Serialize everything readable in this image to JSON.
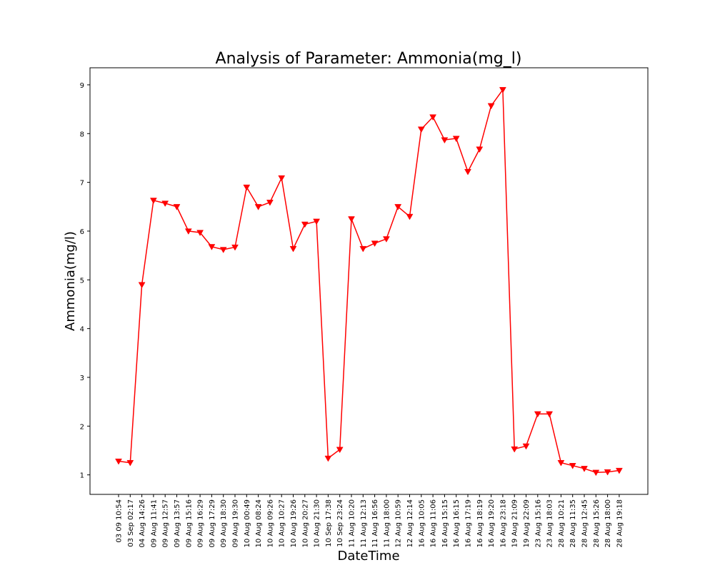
{
  "chart_data": {
    "type": "line",
    "title": "Analysis of Parameter: Ammonia(mg_l)",
    "xlabel": "DateTime",
    "ylabel": "Ammonia(mg/l)",
    "ylim": [
      0.6,
      9.35
    ],
    "yticks": [
      1,
      2,
      3,
      4,
      5,
      6,
      7,
      8,
      9
    ],
    "grid": false,
    "legend": "none",
    "color": "#ff0000",
    "marker": "triangle-down",
    "x": [
      "03 09 10:54",
      "03 Sep 02:17",
      "04 Aug 14:26",
      "09 Aug 11:41",
      "09 Aug 12:57",
      "09 Aug 13:57",
      "09 Aug 15:16",
      "09 Aug 16:29",
      "09 Aug 17:29",
      "09 Aug 18:30",
      "09 Aug 19:30",
      "10 Aug 00:49",
      "10 Aug 08:24",
      "10 Aug 09:26",
      "10 Aug 10:27",
      "10 Aug 19:26",
      "10 Aug 20:27",
      "10 Aug 21:30",
      "10 Sep 17:38",
      "10 Sep 23:24",
      "11 Aug 10:20",
      "11 Aug 12:13",
      "11 Aug 16:56",
      "11 Aug 18:00",
      "12 Aug 10:59",
      "12 Aug 12:14",
      "16 Aug 10:05",
      "16 Aug 11:06",
      "16 Aug 15:15",
      "16 Aug 16:15",
      "16 Aug 17:19",
      "16 Aug 18:19",
      "16 Aug 19:20",
      "16 Aug 23:18",
      "19 Aug 21:09",
      "19 Aug 22:09",
      "23 Aug 15:16",
      "23 Aug 18:03",
      "28 Aug 10:21",
      "28 Aug 11:35",
      "28 Aug 12:45",
      "28 Aug 15:26",
      "28 Aug 18:00",
      "28 Aug 19:18"
    ],
    "series": [
      {
        "values": [
          1.28,
          1.25,
          4.9,
          6.63,
          6.57,
          6.5,
          6.0,
          5.97,
          5.68,
          5.62,
          5.67,
          6.9,
          6.5,
          6.59,
          7.09,
          5.64,
          6.14,
          6.2,
          1.34,
          1.52,
          6.25,
          5.64,
          5.75,
          5.84,
          6.5,
          6.3,
          8.09,
          8.34,
          7.87,
          7.9,
          7.22,
          7.68,
          8.57,
          8.9,
          1.53,
          1.59,
          2.25,
          2.25,
          1.25,
          1.19,
          1.13,
          1.05,
          1.06,
          1.09
        ]
      }
    ]
  }
}
